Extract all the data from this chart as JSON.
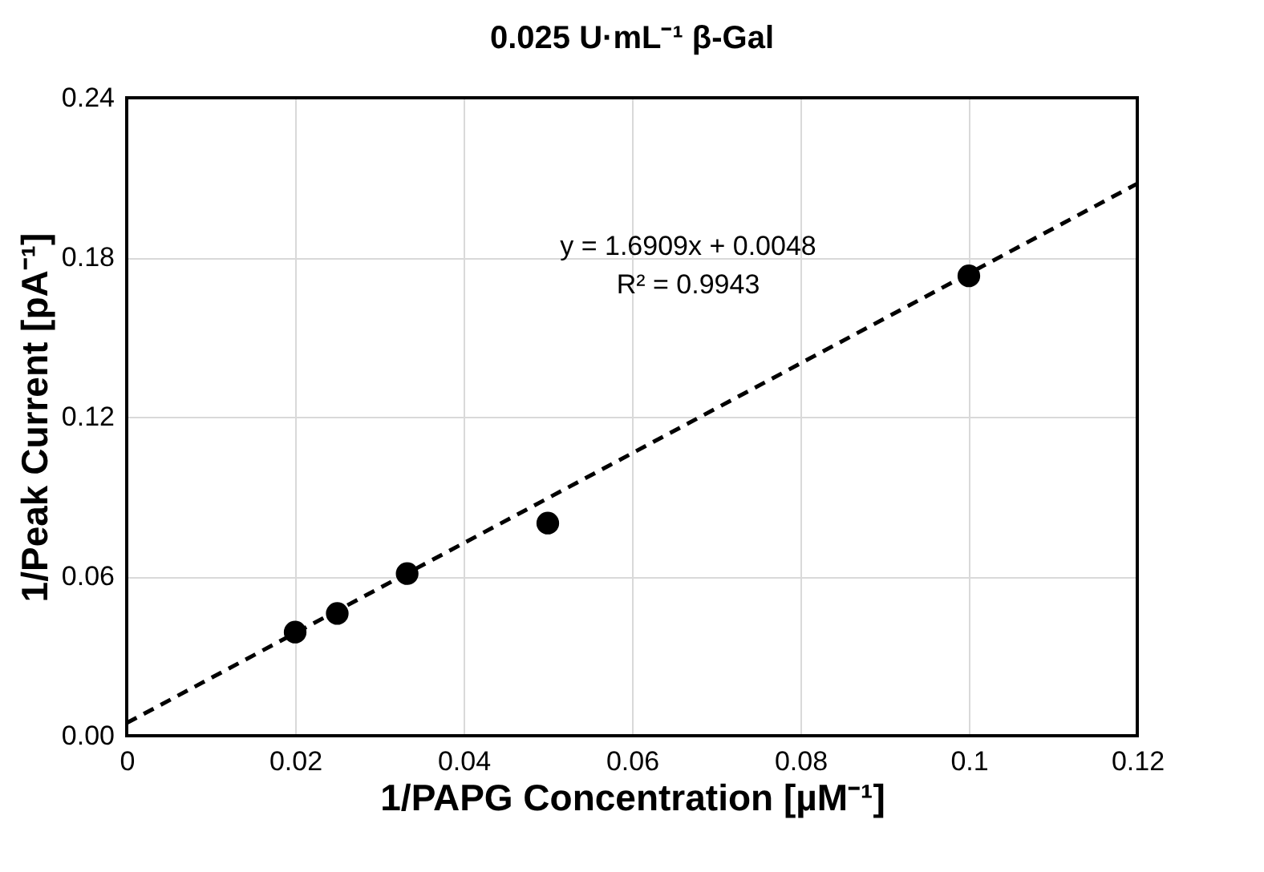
{
  "chart_data": {
    "type": "scatter",
    "title": "0.025 U·mL⁻¹ β-Gal",
    "xlabel": "1/PAPG Concentration [µM⁻¹]",
    "ylabel": "1/Peak Current [pA⁻¹]",
    "x": [
      0.02,
      0.025,
      0.0333,
      0.05,
      0.1
    ],
    "series": [
      {
        "color": "#000000",
        "marker": "circle",
        "values": [
          0.039,
          0.046,
          0.061,
          0.08,
          0.173
        ]
      },
      {
        "type": "line",
        "color": "#000000",
        "line_style": "dashed",
        "x": [
          0,
          0.12
        ],
        "values": [
          0.0048,
          0.2077
        ]
      }
    ],
    "annotations": [
      "y = 1.6909x + 0.0048",
      "R² = 0.9943"
    ],
    "xlim": [
      0,
      0.12
    ],
    "xticks": [
      0,
      0.02,
      0.04,
      0.06,
      0.08,
      0.1,
      0.12
    ],
    "ylim": [
      0,
      0.24
    ],
    "yticks": [
      {
        "value": 0,
        "label": "0.00"
      },
      0.06,
      0.12,
      0.18,
      0.24
    ],
    "grid": true
  }
}
